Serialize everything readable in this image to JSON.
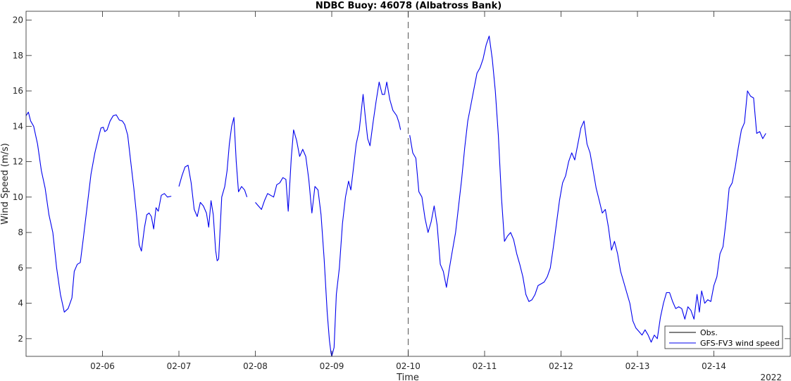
{
  "chart_data": {
    "type": "line",
    "title": "NDBC Buoy: 46078 (Albatross Bank)",
    "xlabel": "Time",
    "ylabel": "Wind Speed (m/s)",
    "year_label": "2022",
    "xlim": [
      5.0,
      15.0
    ],
    "ylim": [
      1,
      20.5
    ],
    "x_ticks": [
      6,
      7,
      8,
      9,
      10,
      11,
      12,
      13,
      14
    ],
    "x_tick_labels": [
      "02-06",
      "02-07",
      "02-08",
      "02-09",
      "02-10",
      "02-11",
      "02-12",
      "02-13",
      "02-14"
    ],
    "y_ticks": [
      2,
      4,
      6,
      8,
      10,
      12,
      14,
      16,
      18,
      20
    ],
    "y_tick_labels": [
      "2",
      "4",
      "6",
      "8",
      "10",
      "12",
      "14",
      "16",
      "18",
      "20"
    ],
    "vline_x": 10.0,
    "legend": {
      "position": "bottom-right",
      "entries": [
        "Obs.",
        "GFS-FV3 wind speed"
      ]
    },
    "series": [
      {
        "name": "Obs.",
        "color": "#000000",
        "segments": []
      },
      {
        "name": "GFS-FV3 wind speed",
        "color": "#0000ee",
        "segments": [
          [
            [
              5.0,
              14.6
            ],
            [
              5.03,
              14.8
            ],
            [
              5.06,
              14.3
            ],
            [
              5.1,
              14.0
            ],
            [
              5.15,
              13.0
            ],
            [
              5.2,
              11.5
            ],
            [
              5.25,
              10.5
            ],
            [
              5.3,
              9.0
            ],
            [
              5.35,
              8.0
            ],
            [
              5.4,
              6.0
            ],
            [
              5.45,
              4.5
            ],
            [
              5.5,
              3.5
            ],
            [
              5.55,
              3.7
            ],
            [
              5.6,
              4.3
            ],
            [
              5.63,
              5.8
            ],
            [
              5.67,
              6.2
            ],
            [
              5.71,
              6.3
            ],
            [
              5.75,
              7.7
            ],
            [
              5.8,
              9.5
            ],
            [
              5.85,
              11.3
            ],
            [
              5.9,
              12.5
            ],
            [
              5.95,
              13.4
            ],
            [
              5.98,
              13.9
            ],
            [
              6.01,
              13.95
            ],
            [
              6.03,
              13.7
            ],
            [
              6.06,
              13.8
            ],
            [
              6.1,
              14.3
            ],
            [
              6.14,
              14.6
            ],
            [
              6.18,
              14.65
            ],
            [
              6.22,
              14.35
            ],
            [
              6.26,
              14.3
            ],
            [
              6.29,
              14.1
            ],
            [
              6.33,
              13.5
            ],
            [
              6.37,
              12.0
            ],
            [
              6.41,
              10.5
            ],
            [
              6.45,
              8.8
            ],
            [
              6.48,
              7.3
            ],
            [
              6.51,
              6.95
            ],
            [
              6.55,
              8.3
            ],
            [
              6.58,
              9.0
            ],
            [
              6.61,
              9.1
            ],
            [
              6.64,
              8.9
            ],
            [
              6.67,
              8.2
            ],
            [
              6.7,
              9.4
            ],
            [
              6.73,
              9.2
            ],
            [
              6.77,
              10.1
            ],
            [
              6.81,
              10.2
            ],
            [
              6.85,
              10.0
            ],
            [
              6.9,
              10.05
            ]
          ],
          [
            [
              7.0,
              10.6
            ],
            [
              7.04,
              11.2
            ],
            [
              7.08,
              11.7
            ],
            [
              7.12,
              11.8
            ],
            [
              7.16,
              10.8
            ],
            [
              7.2,
              9.3
            ],
            [
              7.24,
              8.9
            ],
            [
              7.28,
              9.7
            ],
            [
              7.32,
              9.5
            ],
            [
              7.36,
              9.1
            ],
            [
              7.39,
              8.3
            ],
            [
              7.42,
              9.8
            ],
            [
              7.45,
              9.0
            ],
            [
              7.48,
              7.0
            ],
            [
              7.5,
              6.4
            ],
            [
              7.52,
              6.5
            ],
            [
              7.56,
              10.0
            ],
            [
              7.6,
              10.6
            ],
            [
              7.63,
              11.5
            ],
            [
              7.66,
              13.0
            ],
            [
              7.69,
              14.0
            ],
            [
              7.72,
              14.5
            ],
            [
              7.75,
              12.0
            ],
            [
              7.78,
              10.3
            ],
            [
              7.82,
              10.6
            ],
            [
              7.86,
              10.4
            ],
            [
              7.89,
              10.0
            ]
          ],
          [
            [
              8.0,
              9.7
            ],
            [
              8.04,
              9.5
            ],
            [
              8.08,
              9.3
            ],
            [
              8.12,
              9.8
            ],
            [
              8.16,
              10.2
            ],
            [
              8.2,
              10.1
            ],
            [
              8.24,
              10.0
            ],
            [
              8.28,
              10.7
            ],
            [
              8.32,
              10.8
            ],
            [
              8.36,
              11.1
            ],
            [
              8.4,
              11.0
            ],
            [
              8.43,
              9.2
            ],
            [
              8.47,
              12.2
            ],
            [
              8.5,
              13.8
            ],
            [
              8.54,
              13.2
            ],
            [
              8.58,
              12.3
            ],
            [
              8.62,
              12.7
            ],
            [
              8.66,
              12.3
            ],
            [
              8.7,
              11.0
            ],
            [
              8.74,
              9.1
            ],
            [
              8.78,
              10.6
            ],
            [
              8.82,
              10.4
            ],
            [
              8.86,
              9.0
            ],
            [
              8.9,
              6.5
            ],
            [
              8.94,
              3.5
            ],
            [
              8.97,
              1.9
            ],
            [
              8.99,
              1.2
            ],
            [
              9.0,
              1.0
            ],
            [
              9.03,
              1.5
            ],
            [
              9.06,
              4.5
            ],
            [
              9.1,
              6.0
            ],
            [
              9.14,
              8.5
            ],
            [
              9.18,
              10.0
            ],
            [
              9.22,
              10.9
            ],
            [
              9.25,
              10.4
            ],
            [
              9.28,
              11.5
            ],
            [
              9.32,
              13.0
            ],
            [
              9.36,
              13.8
            ],
            [
              9.39,
              15.0
            ],
            [
              9.41,
              15.8
            ],
            [
              9.44,
              14.5
            ],
            [
              9.47,
              13.3
            ],
            [
              9.5,
              12.9
            ],
            [
              9.54,
              14.2
            ],
            [
              9.58,
              15.4
            ],
            [
              9.62,
              16.5
            ],
            [
              9.66,
              15.8
            ],
            [
              9.69,
              15.8
            ],
            [
              9.72,
              16.5
            ],
            [
              9.76,
              15.5
            ],
            [
              9.8,
              14.9
            ],
            [
              9.85,
              14.6
            ],
            [
              9.88,
              14.2
            ],
            [
              9.9,
              13.8
            ]
          ],
          [
            [
              10.02,
              13.5
            ],
            [
              10.06,
              12.5
            ],
            [
              10.1,
              12.2
            ],
            [
              10.14,
              10.3
            ],
            [
              10.18,
              10.0
            ],
            [
              10.22,
              8.8
            ],
            [
              10.26,
              8.0
            ],
            [
              10.3,
              8.6
            ],
            [
              10.34,
              9.5
            ],
            [
              10.38,
              8.4
            ],
            [
              10.42,
              6.2
            ],
            [
              10.46,
              5.8
            ],
            [
              10.5,
              4.9
            ],
            [
              10.54,
              6.0
            ],
            [
              10.58,
              7.0
            ],
            [
              10.62,
              8.0
            ],
            [
              10.66,
              9.5
            ],
            [
              10.7,
              11.0
            ],
            [
              10.74,
              12.8
            ],
            [
              10.78,
              14.3
            ],
            [
              10.82,
              15.2
            ],
            [
              10.86,
              16.1
            ],
            [
              10.9,
              17.0
            ],
            [
              10.94,
              17.3
            ],
            [
              10.98,
              17.8
            ],
            [
              11.02,
              18.6
            ],
            [
              11.06,
              19.1
            ],
            [
              11.1,
              17.8
            ],
            [
              11.14,
              16.0
            ],
            [
              11.18,
              13.5
            ],
            [
              11.22,
              10.0
            ],
            [
              11.26,
              7.5
            ],
            [
              11.3,
              7.8
            ],
            [
              11.34,
              8.0
            ],
            [
              11.38,
              7.6
            ],
            [
              11.42,
              6.8
            ],
            [
              11.46,
              6.2
            ],
            [
              11.5,
              5.5
            ],
            [
              11.54,
              4.5
            ],
            [
              11.58,
              4.1
            ],
            [
              11.62,
              4.2
            ],
            [
              11.66,
              4.5
            ],
            [
              11.7,
              5.0
            ],
            [
              11.74,
              5.1
            ],
            [
              11.78,
              5.2
            ],
            [
              11.82,
              5.5
            ],
            [
              11.86,
              6.0
            ],
            [
              11.9,
              7.2
            ],
            [
              11.94,
              8.5
            ],
            [
              11.98,
              9.8
            ],
            [
              12.02,
              10.8
            ],
            [
              12.06,
              11.2
            ],
            [
              12.1,
              12.0
            ],
            [
              12.14,
              12.5
            ],
            [
              12.18,
              12.1
            ],
            [
              12.22,
              13.0
            ],
            [
              12.26,
              13.9
            ],
            [
              12.3,
              14.3
            ],
            [
              12.34,
              13.0
            ],
            [
              12.38,
              12.5
            ],
            [
              12.42,
              11.5
            ],
            [
              12.46,
              10.5
            ],
            [
              12.5,
              9.8
            ],
            [
              12.54,
              9.1
            ],
            [
              12.58,
              9.3
            ],
            [
              12.62,
              8.3
            ],
            [
              12.66,
              7.0
            ],
            [
              12.7,
              7.5
            ],
            [
              12.74,
              6.8
            ],
            [
              12.78,
              5.8
            ],
            [
              12.82,
              5.2
            ],
            [
              12.86,
              4.6
            ],
            [
              12.9,
              4.0
            ],
            [
              12.94,
              3.0
            ],
            [
              12.98,
              2.6
            ],
            [
              13.02,
              2.4
            ],
            [
              13.06,
              2.2
            ],
            [
              13.1,
              2.5
            ],
            [
              13.14,
              2.2
            ],
            [
              13.18,
              1.8
            ],
            [
              13.22,
              2.2
            ],
            [
              13.26,
              2.0
            ],
            [
              13.3,
              3.2
            ],
            [
              13.34,
              4.0
            ],
            [
              13.38,
              4.6
            ],
            [
              13.42,
              4.6
            ],
            [
              13.46,
              4.1
            ],
            [
              13.5,
              3.7
            ],
            [
              13.54,
              3.8
            ],
            [
              13.58,
              3.7
            ],
            [
              13.62,
              3.1
            ],
            [
              13.66,
              3.8
            ],
            [
              13.7,
              3.6
            ],
            [
              13.74,
              3.1
            ],
            [
              13.78,
              4.5
            ],
            [
              13.81,
              3.5
            ],
            [
              13.84,
              4.7
            ],
            [
              13.88,
              4.0
            ],
            [
              13.92,
              4.2
            ],
            [
              13.96,
              4.1
            ],
            [
              14.0,
              5.0
            ],
            [
              14.04,
              5.5
            ],
            [
              14.08,
              6.8
            ],
            [
              14.12,
              7.2
            ],
            [
              14.16,
              8.7
            ],
            [
              14.2,
              10.5
            ],
            [
              14.24,
              10.8
            ],
            [
              14.28,
              11.7
            ],
            [
              14.32,
              12.8
            ],
            [
              14.36,
              13.8
            ],
            [
              14.4,
              14.2
            ],
            [
              14.44,
              16.0
            ],
            [
              14.48,
              15.7
            ],
            [
              14.52,
              15.6
            ],
            [
              14.56,
              13.6
            ],
            [
              14.6,
              13.7
            ],
            [
              14.64,
              13.3
            ],
            [
              14.68,
              13.6
            ]
          ]
        ]
      }
    ]
  }
}
